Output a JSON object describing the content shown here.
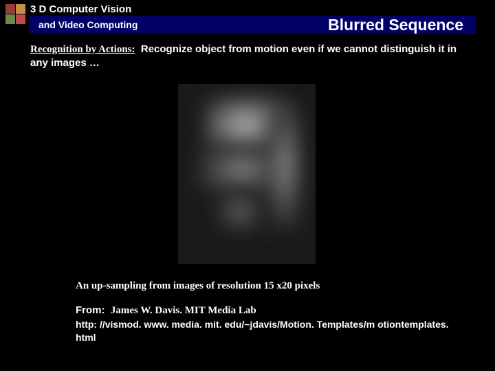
{
  "colors": {
    "square_tl": "#9a3a3a",
    "square_tr": "#c0904a",
    "square_bl": "#6a8a4a",
    "square_br": "#c24a4a",
    "header_bar": "#000066",
    "background": "#000000",
    "text": "#ffffff"
  },
  "header": {
    "line1": "3 D Computer Vision",
    "line2": "and Video Computing",
    "title": "Blurred Sequence"
  },
  "body": {
    "lead_label": "Recognition by Actions:",
    "lead_text": "Recognize object from motion even if we cannot distinguish it in any images …"
  },
  "caption": "An up-sampling from images of resolution 15 x20 pixels",
  "from": {
    "label": "From:",
    "name": "James W. Davis. MIT Media Lab",
    "url": "http: //vismod. www. media. mit. edu/~jdavis/Motion. Templates/m otiontemplates. html"
  }
}
